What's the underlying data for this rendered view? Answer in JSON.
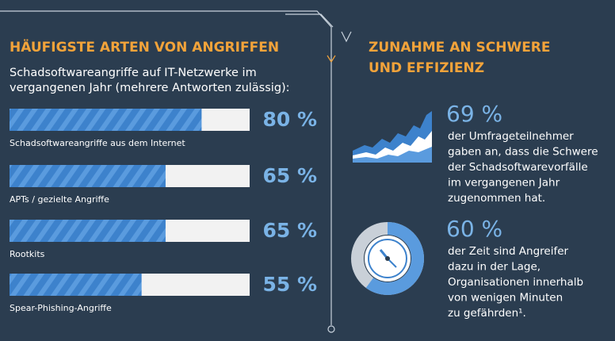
{
  "chart_data": {
    "type": "bar",
    "title": "HÄUFIGSTE ARTEN VON ANGRIFFEN",
    "subtitle_lines": [
      "Schadsoftwareangriffe auf IT-Netzwerke im",
      "vergangenen Jahr (mehrere Antworten zulässig):"
    ],
    "categories": [
      "Schadsoftwareangriffe aus dem Internet",
      "APTs / gezielte Angriffe",
      "Rootkits",
      "Spear-Phishing-Angriffe"
    ],
    "values": [
      80,
      65,
      65,
      55
    ],
    "value_labels": [
      "80 %",
      "65 %",
      "65 %",
      "55 %"
    ],
    "color": "#3d82cc",
    "xlim": [
      0,
      100
    ]
  },
  "stats": {
    "title_lines": [
      "ZUNAHME AN SCHWERE",
      "UND EFFIZIENZ"
    ],
    "items": [
      {
        "value": 69,
        "value_label": "69 %",
        "lines": [
          "der Umfrageteilnehmer",
          "gaben an, dass die Schwere",
          "der Schadsoftwarevorfälle",
          "im vergangenen Jahr",
          "zugenommen hat."
        ]
      },
      {
        "value": 60,
        "value_label": "60 %",
        "lines": [
          "der Zeit sind Angreifer",
          "dazu in der Lage,",
          "Organisationen innerhalb",
          "von wenigen Minuten",
          "zu gefährden¹."
        ]
      }
    ]
  }
}
